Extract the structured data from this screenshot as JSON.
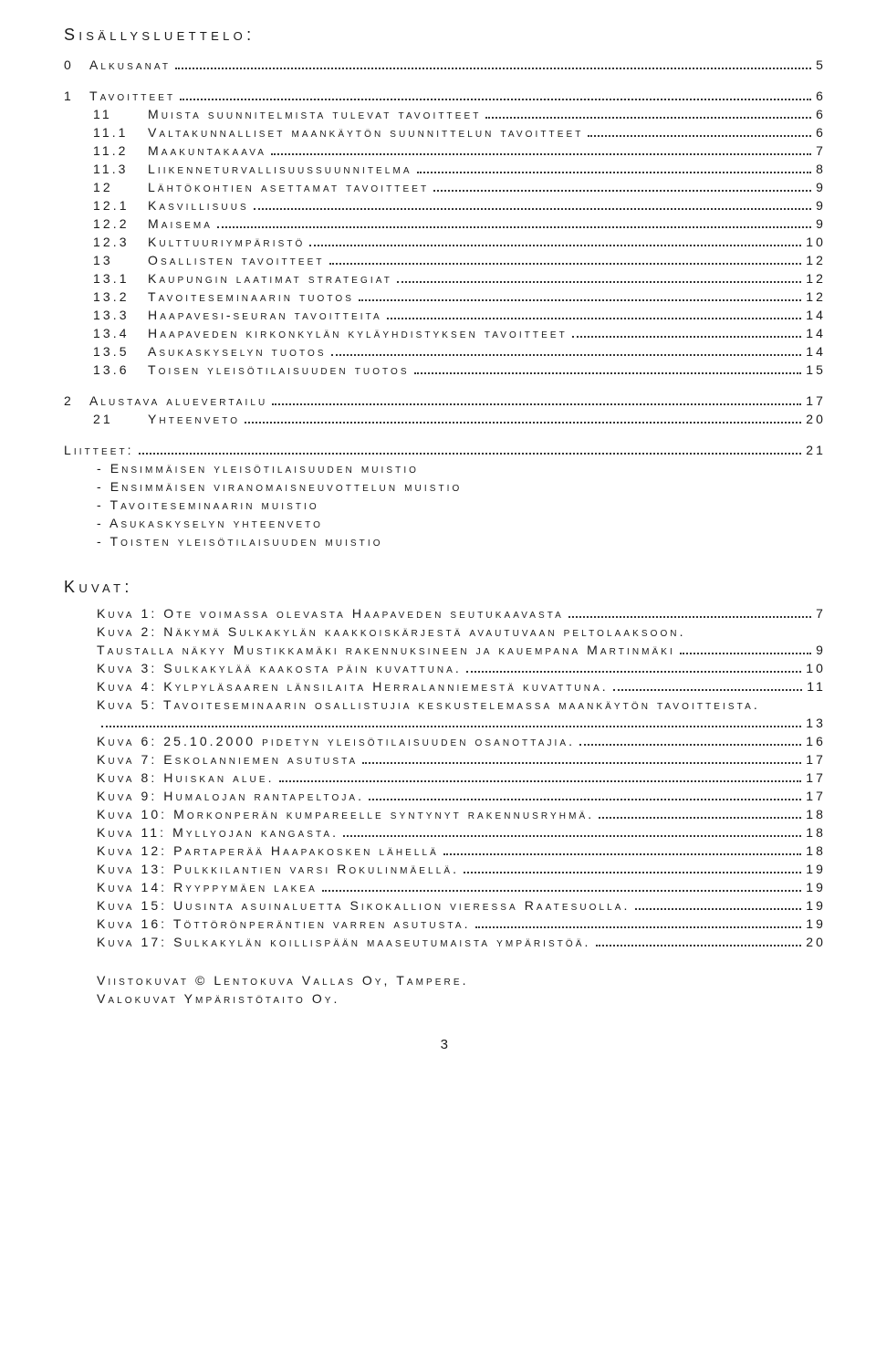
{
  "title": "Sisällysluettelo:",
  "toc": [
    {
      "lvl": 0,
      "num": "0",
      "label": "Alkusanat",
      "page": "5"
    },
    {
      "lvl": 0,
      "num": "1",
      "label": "Tavoitteet",
      "page": "6"
    },
    {
      "lvl": 1,
      "num": "11",
      "label": "Muista suunnitelmista tulevat tavoitteet",
      "page": "6"
    },
    {
      "lvl": 2,
      "num": "11.1",
      "label": "Valtakunnalliset maankäytön suunnittelun tavoitteet",
      "page": "6"
    },
    {
      "lvl": 2,
      "num": "11.2",
      "label": "Maakuntakaava",
      "page": "7"
    },
    {
      "lvl": 2,
      "num": "11.3",
      "label": "Liikenneturvallisuussuunnitelma",
      "page": "8"
    },
    {
      "lvl": 1,
      "num": "12",
      "label": "Lähtökohtien asettamat tavoitteet",
      "page": "9"
    },
    {
      "lvl": 2,
      "num": "12.1",
      "label": "Kasvillisuus",
      "page": "9"
    },
    {
      "lvl": 2,
      "num": "12.2",
      "label": "Maisema",
      "page": "9"
    },
    {
      "lvl": 2,
      "num": "12.3",
      "label": "Kulttuuriympäristö",
      "page": "10"
    },
    {
      "lvl": 1,
      "num": "13",
      "label": "Osallisten tavoitteet",
      "page": "12"
    },
    {
      "lvl": 2,
      "num": "13.1",
      "label": "Kaupungin laatimat strategiat",
      "page": "12"
    },
    {
      "lvl": 2,
      "num": "13.2",
      "label": "Tavoiteseminaarin tuotos",
      "page": "12"
    },
    {
      "lvl": 2,
      "num": "13.3",
      "label": "Haapavesi-seuran tavoitteita",
      "page": "14"
    },
    {
      "lvl": 2,
      "num": "13.4",
      "label": "Haapaveden kirkonkylän kyläyhdistyksen tavoitteet",
      "page": "14"
    },
    {
      "lvl": 2,
      "num": "13.5",
      "label": "Asukaskyselyn tuotos",
      "page": "14"
    },
    {
      "lvl": 2,
      "num": "13.6",
      "label": "Toisen yleisötilaisuuden tuotos",
      "page": "15"
    },
    {
      "lvl": 0,
      "num": "2",
      "label": "Alustava aluevertailu",
      "page": "17"
    },
    {
      "lvl": 1,
      "num": "21",
      "label": "Yhteenveto",
      "page": "20"
    }
  ],
  "liitteet": {
    "label": "Liitteet:",
    "page": "21",
    "items": [
      "- Ensimmäisen yleisötilaisuuden muistio",
      "- Ensimmäisen viranomaisneuvottelun muistio",
      "- Tavoiteseminaarin muistio",
      "- Asukaskyselyn yhteenveto",
      "- Toisten yleisötilaisuuden muistio"
    ]
  },
  "kuvat_heading": "Kuvat:",
  "kuvat": [
    {
      "text": "Kuva 1: Ote voimassa olevasta Haapaveden seutukaavasta",
      "page": "7"
    },
    {
      "text": "Kuva 2: Näkymä Sulkakylän kaakkoiskärjestä avautuvaan peltolaaksoon.",
      "page": null,
      "cont": "Taustalla näkyy Mustikkamäki rakennuksineen ja kauempana Martinmäki",
      "contpage": "9"
    },
    {
      "text": "Kuva 3: Sulkakylää kaakosta päin kuvattuna.",
      "page": "10"
    },
    {
      "text": "Kuva 4: Kylpyläsaaren länsilaita Herralanniemestä kuvattuna.",
      "page": "11"
    },
    {
      "text": "Kuva 5: Tavoiteseminaarin osallistujia keskustelemassa maankäytön tavoitteista.",
      "page": null,
      "cont": "",
      "contpage": "13"
    },
    {
      "text": "Kuva 6: 25.10.2000 pidetyn yleisötilaisuuden osanottajia.",
      "page": "16"
    },
    {
      "text": "Kuva 7: Eskolanniemen asutusta",
      "page": "17"
    },
    {
      "text": "Kuva 8: Huiskan alue.",
      "page": "17"
    },
    {
      "text": "Kuva 9: Humalojan rantapeltoja.",
      "page": "17"
    },
    {
      "text": "Kuva 10: Morkonperän kumpareelle syntynyt rakennusryhmä.",
      "page": "18"
    },
    {
      "text": "Kuva 11: Myllyojan kangasta.",
      "page": "18"
    },
    {
      "text": "Kuva 12: Partaperää Haapakosken lähellä",
      "page": "18"
    },
    {
      "text": "Kuva 13: Pulkkilantien varsi Rokulinmäellä.",
      "page": "19"
    },
    {
      "text": "Kuva 14: Ryyppymäen lakea",
      "page": "19"
    },
    {
      "text": "Kuva 15: Uusinta asuinaluetta Sikokallion vieressa Raatesuolla.",
      "page": "19"
    },
    {
      "text": "Kuva 16: Töttörönperäntien varren asutusta.",
      "page": "19"
    },
    {
      "text": "Kuva 17: Sulkakylän koillispään maaseutumaista ympäristöä.",
      "page": "20"
    }
  ],
  "footer": {
    "line1": "Viistokuvat © Lentokuva Vallas Oy, Tampere.",
    "line2": "Valokuvat Ympäristötaito Oy."
  },
  "page_number": "3"
}
